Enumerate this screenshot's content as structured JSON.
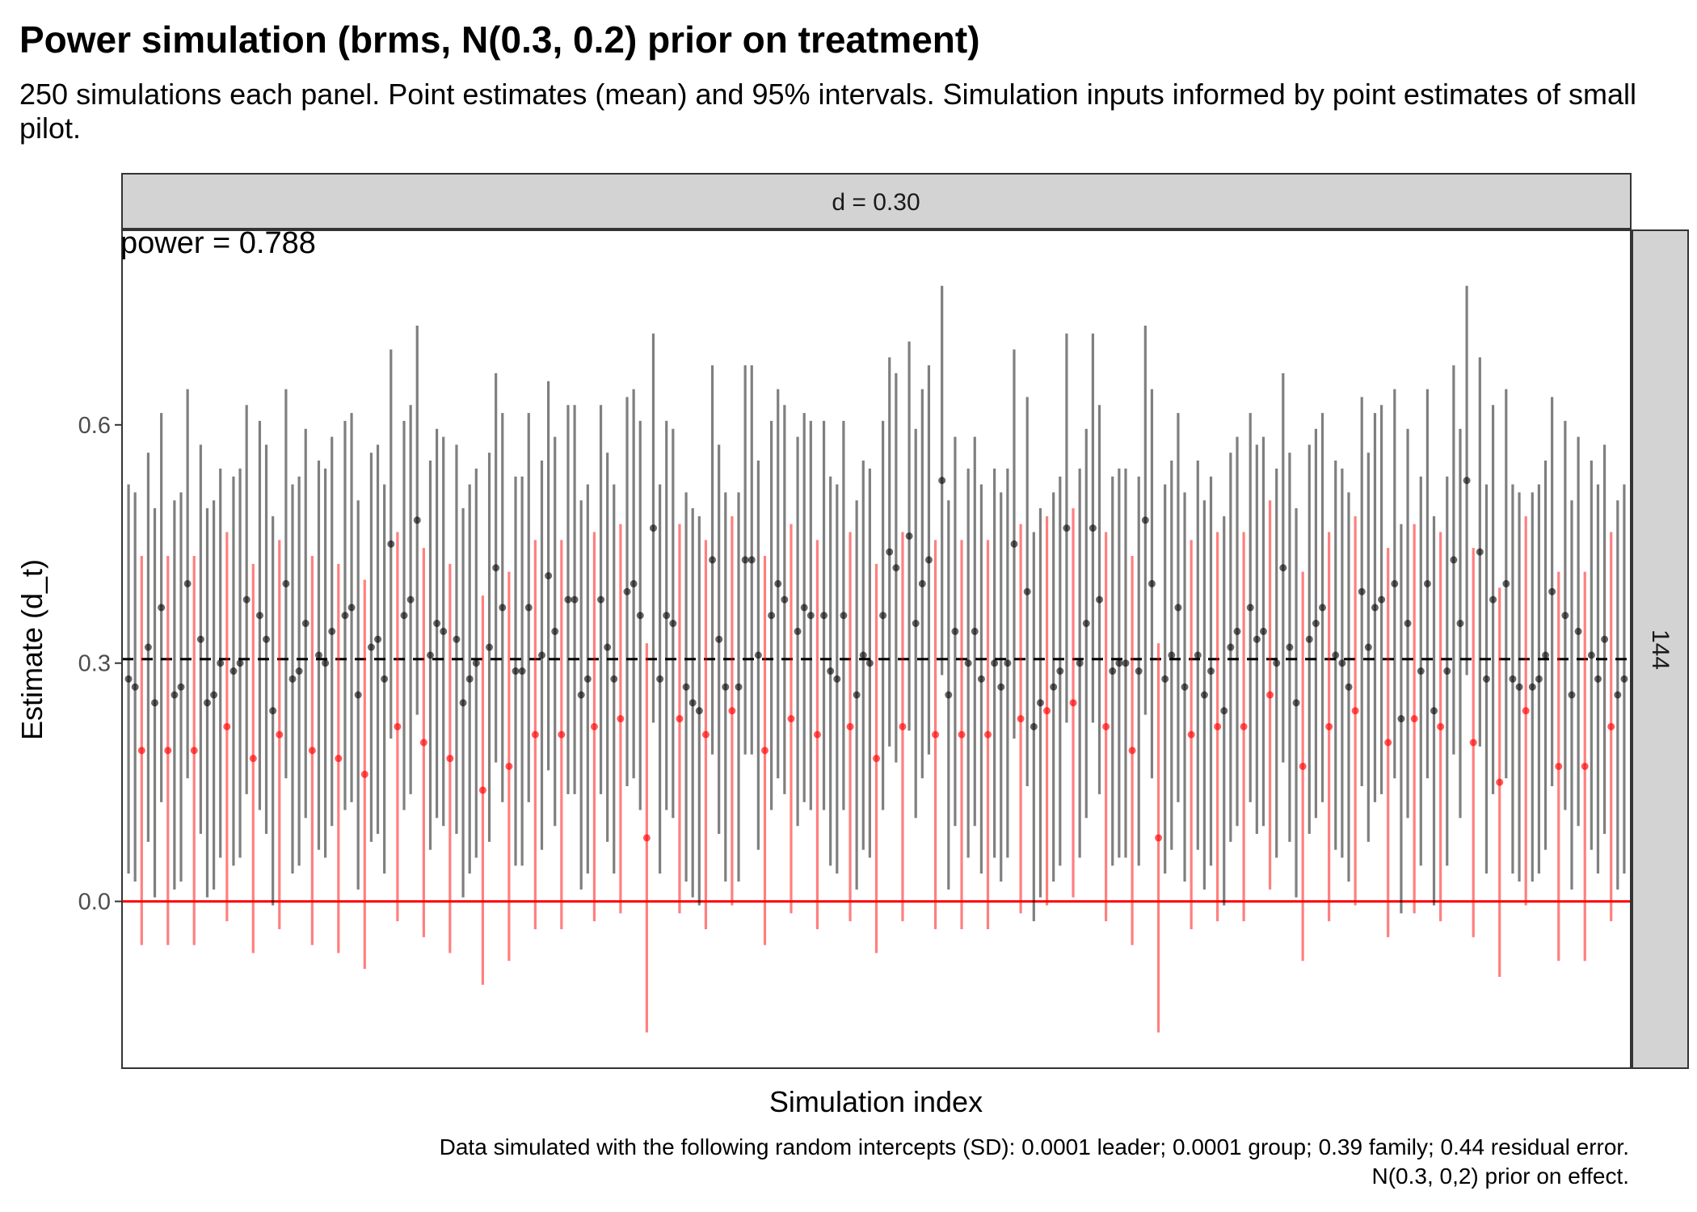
{
  "title": "Power simulation (brms, N(0.3, 0.2) prior on treatment)",
  "subtitle": "250 simulations each panel. Point estimates (mean) and 95% intervals. Simulation inputs informed by point estimates of small pilot.",
  "caption": {
    "line1": "Data simulated with the following random intercepts (SD): 0.0001 leader; 0.0001 group; 0.39 family; 0.44 residual error.",
    "line2": "N(0.3, 0,2) prior on effect."
  },
  "chart_data": {
    "type": "scatter",
    "title": "Power simulation (brms, N(0.3, 0.2) prior on treatment)",
    "xlabel": "Simulation index",
    "ylabel": "Estimate (d_t)",
    "facet_top": "d = 0.30",
    "facet_right": "144",
    "annotation": "power = 0.788",
    "x_range": [
      1,
      250
    ],
    "ylim": [
      -0.21,
      0.845
    ],
    "y_ticks": [
      0.0,
      0.3,
      0.6
    ],
    "y_tick_labels": [
      "0.0",
      "0.3",
      "0.6"
    ],
    "reference_lines": {
      "true_effect": 0.305,
      "zero": 0.0
    },
    "grid": false,
    "colors": {
      "significant": "#000000",
      "non_significant": "#ff0000",
      "zero_line": "#ff0000",
      "dashed_line": "#000000",
      "strip_fill": "#d3d3d3"
    },
    "series": [
      {
        "name": "significant",
        "estimates": [
          0.28,
          0.27,
          0.32,
          0.25,
          0.37,
          0.26,
          0.27,
          0.4,
          0.33,
          0.25,
          0.26,
          0.3,
          0.29,
          0.3,
          0.38,
          0.36,
          0.33,
          0.24,
          0.4,
          0.28,
          0.29,
          0.35,
          0.31,
          0.3,
          0.34,
          0.36,
          0.37,
          0.26,
          0.32,
          0.33,
          0.28,
          0.45,
          0.36,
          0.38,
          0.48,
          0.31,
          0.35,
          0.34,
          0.33,
          0.25,
          0.28,
          0.3,
          0.32,
          0.42,
          0.37,
          0.29,
          0.29,
          0.37,
          0.31,
          0.41,
          0.34,
          0.38,
          0.38,
          0.26,
          0.28,
          0.38,
          0.32,
          0.28,
          0.39,
          0.4,
          0.36,
          0.47,
          0.28,
          0.36,
          0.35,
          0.27,
          0.25,
          0.24,
          0.43,
          0.33,
          0.27,
          0.27,
          0.43,
          0.43,
          0.31,
          0.36,
          0.4,
          0.38,
          0.34,
          0.37,
          0.36,
          0.36,
          0.29,
          0.28,
          0.36,
          0.26,
          0.31,
          0.3,
          0.36,
          0.44,
          0.42,
          0.46,
          0.35,
          0.4,
          0.43,
          0.53,
          0.26,
          0.34,
          0.3,
          0.34,
          0.28,
          0.3,
          0.27,
          0.3,
          0.45,
          0.39,
          0.22,
          0.25,
          0.27,
          0.29,
          0.47,
          0.3,
          0.35,
          0.47,
          0.38,
          0.29,
          0.3,
          0.3,
          0.29,
          0.48,
          0.4,
          0.28,
          0.31,
          0.37,
          0.27,
          0.31,
          0.26,
          0.29,
          0.24,
          0.32,
          0.34,
          0.37,
          0.33,
          0.34,
          0.3,
          0.42,
          0.32,
          0.25,
          0.33,
          0.35,
          0.37,
          0.31,
          0.3,
          0.27,
          0.39,
          0.32,
          0.37,
          0.38,
          0.4,
          0.23,
          0.35,
          0.29,
          0.4,
          0.24,
          0.29,
          0.43,
          0.35,
          0.53,
          0.44,
          0.28,
          0.38,
          0.4,
          0.28,
          0.27,
          0.27,
          0.28,
          0.31,
          0.39,
          0.36,
          0.26,
          0.34,
          0.31,
          0.28,
          0.33,
          0.26,
          0.28
        ],
        "interval_half_width": 0.245
      },
      {
        "name": "non-significant",
        "estimates": [
          0.19,
          0.19,
          0.19,
          0.22,
          0.18,
          0.21,
          0.19,
          0.18,
          0.16,
          0.22,
          0.2,
          0.18,
          0.14,
          0.17,
          0.21,
          0.21,
          0.22,
          0.23,
          0.08,
          0.23,
          0.21,
          0.24,
          0.19,
          0.23,
          0.21,
          0.22,
          0.18,
          0.22,
          0.21,
          0.21,
          0.21,
          0.23,
          0.24,
          0.25,
          0.22,
          0.19,
          0.08,
          0.21,
          0.22,
          0.22,
          0.26,
          0.17,
          0.22,
          0.24,
          0.2,
          0.23,
          0.22,
          0.2,
          0.15,
          0.24,
          0.17,
          0.17,
          0.22
        ],
        "interval_half_width": 0.245
      }
    ]
  }
}
